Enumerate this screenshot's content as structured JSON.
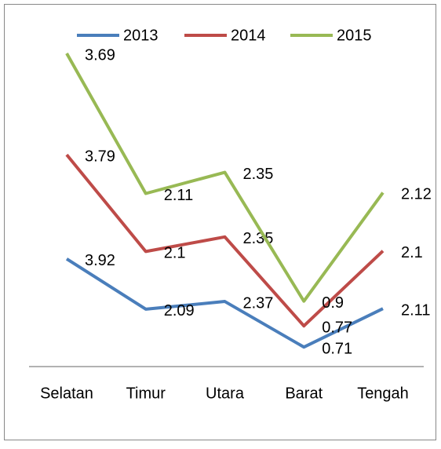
{
  "chart_data": {
    "type": "line",
    "stacked": true,
    "categories": [
      "Selatan",
      "Timur",
      "Utara",
      "Barat",
      "Tengah"
    ],
    "series": [
      {
        "name": "2013",
        "color": "#4a7ebb",
        "values": [
          3.92,
          2.09,
          2.37,
          0.71,
          2.11
        ]
      },
      {
        "name": "2014",
        "color": "#be4b48",
        "values": [
          3.79,
          2.1,
          2.35,
          0.77,
          2.1
        ]
      },
      {
        "name": "2015",
        "color": "#98b954",
        "values": [
          3.69,
          2.11,
          2.35,
          0.9,
          2.12
        ]
      }
    ],
    "ylim": [
      0,
      13
    ],
    "legend": "top"
  }
}
